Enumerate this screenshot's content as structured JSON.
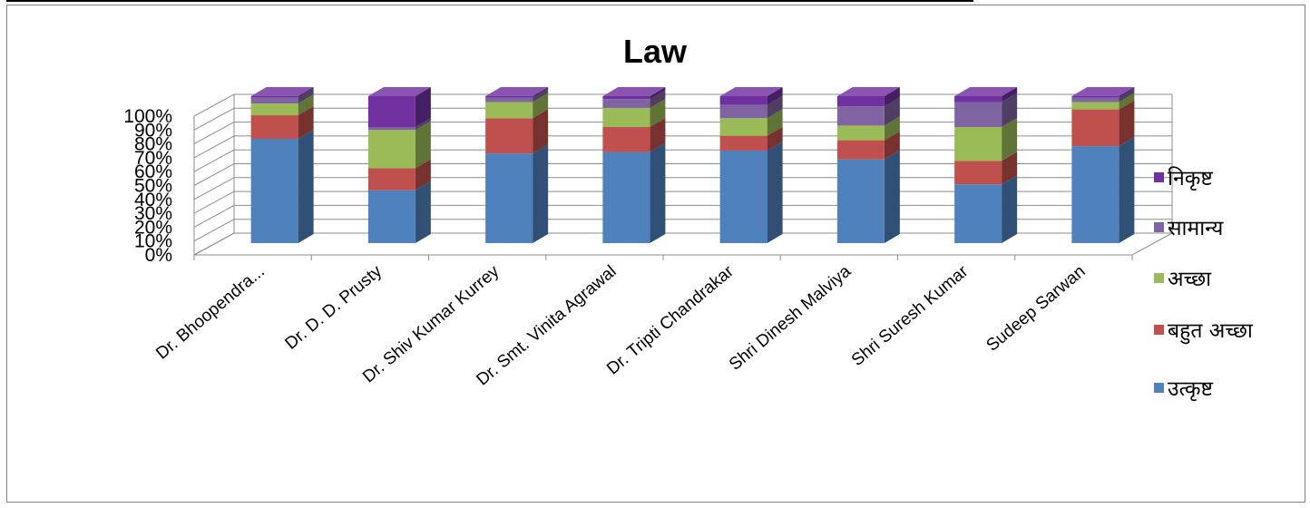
{
  "chart_data": {
    "type": "bar",
    "stacked": true,
    "percent": true,
    "title": "Law",
    "categories": [
      "Dr. Bhoopendra...",
      "Dr. D. D. Prusty",
      "Dr. Shiv Kumar Kurrey",
      "Dr. Smt. Vinita Agrawal",
      "Dr. Tripti Chandrakar",
      "Shri Dinesh Malviya",
      "Shri Suresh Kumar",
      "Sudeep Sarwan"
    ],
    "series": [
      {
        "name": "उत्कृष्ट",
        "color": "#4F81BD",
        "values": [
          71,
          36,
          61,
          62,
          63,
          57,
          40,
          66
        ]
      },
      {
        "name": "बहुत अच्छा",
        "color": "#C0504D",
        "values": [
          16,
          15,
          24,
          17,
          10,
          13,
          16,
          25
        ]
      },
      {
        "name": "अच्छा",
        "color": "#9BBB59",
        "values": [
          8,
          26,
          11,
          13,
          12,
          10,
          23,
          5
        ]
      },
      {
        "name": "सामान्य",
        "color": "#8064A2",
        "values": [
          4,
          2,
          3,
          6,
          9,
          13,
          17,
          3
        ]
      },
      {
        "name": "निकृष्ट",
        "color": "#7030A0",
        "values": [
          1,
          21,
          1,
          2,
          6,
          7,
          4,
          1
        ]
      }
    ],
    "y_ticks": [
      "0%",
      "10%",
      "20%",
      "30%",
      "40%",
      "50%",
      "60%",
      "70%",
      "80%",
      "90%",
      "100%"
    ],
    "ylim": [
      0,
      100
    ],
    "legend_position": "right",
    "grid": true
  }
}
